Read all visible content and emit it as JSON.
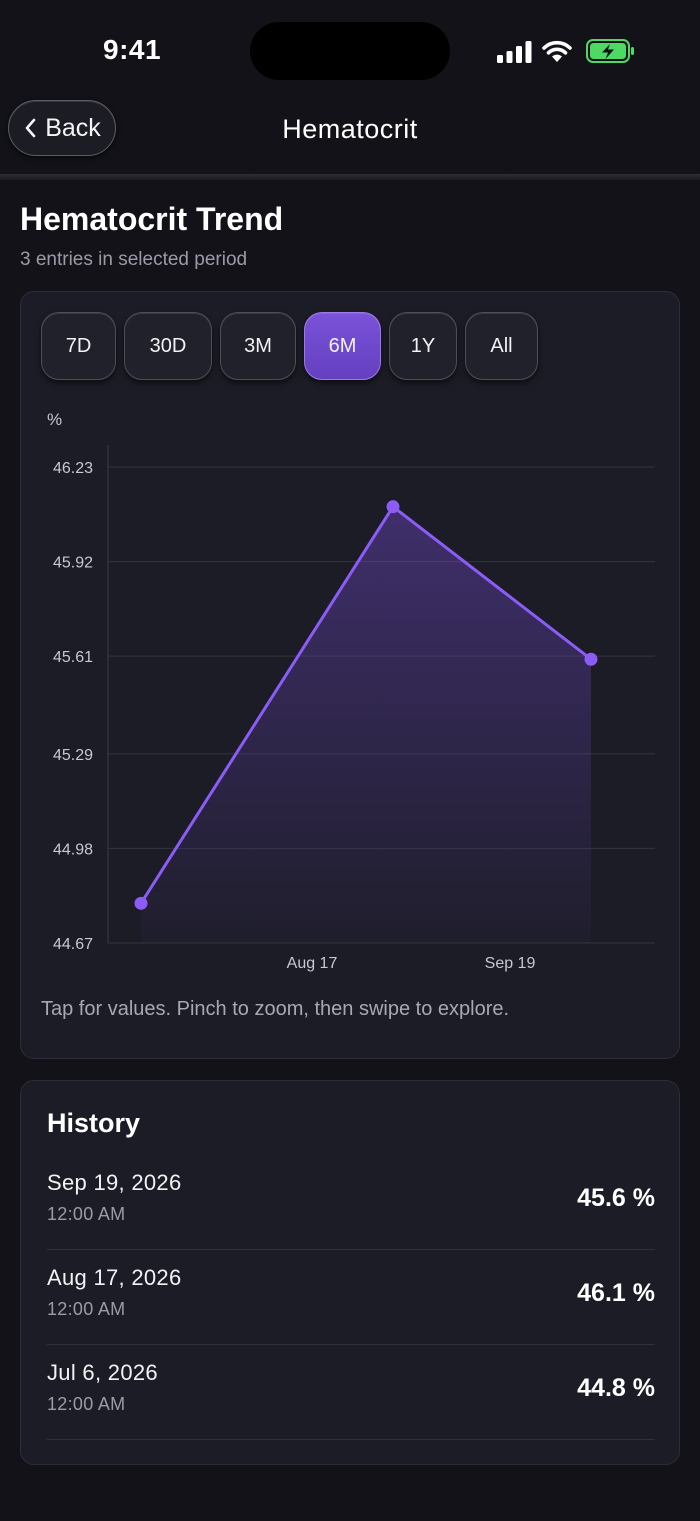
{
  "status_bar": {
    "time": "9:41"
  },
  "nav": {
    "back_label": "Back",
    "title": "Hematocrit"
  },
  "header": {
    "title": "Hematocrit Trend",
    "subtitle": "3 entries in selected period"
  },
  "range_selector": {
    "options": [
      "7D",
      "30D",
      "3M",
      "6M",
      "1Y",
      "All"
    ],
    "selected": "6M"
  },
  "chart_hint": "Tap for values. Pinch to zoom, then swipe to explore.",
  "chart_data": {
    "type": "area",
    "title": "",
    "xlabel": "",
    "ylabel": "%",
    "x": [
      "2026-07-06",
      "2026-08-17",
      "2026-09-19"
    ],
    "values": [
      44.8,
      46.1,
      45.6
    ],
    "ylim": [
      44.67,
      46.23
    ],
    "y_ticks": [
      "44.67",
      "44.98",
      "45.29",
      "45.61",
      "45.92",
      "46.23"
    ],
    "x_tick_labels": [
      "Aug 17",
      "Sep 19"
    ],
    "grid": true,
    "line_color": "#8b5cf6",
    "fill_color": "#7c4dde"
  },
  "history": {
    "title": "History",
    "entries": [
      {
        "date": "Sep 19, 2026",
        "time": "12:00 AM",
        "value": "45.6 %"
      },
      {
        "date": "Aug 17, 2026",
        "time": "12:00 AM",
        "value": "46.1 %"
      },
      {
        "date": "Jul 6, 2026",
        "time": "12:00 AM",
        "value": "44.8 %"
      }
    ]
  },
  "colors": {
    "background": "#121218",
    "card": "#1b1c25",
    "accent": "#7a52d9",
    "battery": "#4cd964"
  }
}
